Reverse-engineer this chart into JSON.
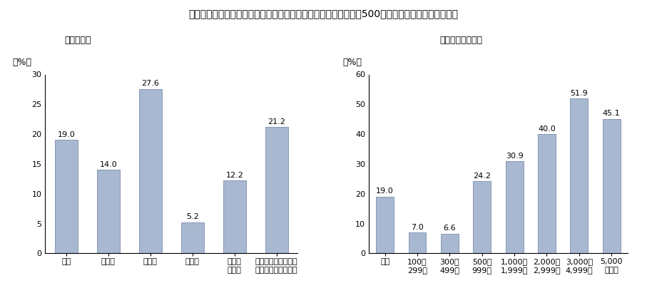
{
  "title": "運輸業、金融・保険業、卸売・小売業、建設業の導入率が低く、500人未満の企業の導入率が低い",
  "left_subtitle": "（産業別）",
  "right_subtitle": "（従業員規模別）",
  "left_ylabel": "（%）",
  "right_ylabel": "（%）",
  "left_categories": [
    "全体",
    "建設業",
    "製造業",
    "運輸業",
    "卸売・\n小売業",
    "金融・サービス業・\n保険業その他（計）"
  ],
  "left_values": [
    19.0,
    14.0,
    27.6,
    5.2,
    12.2,
    21.2
  ],
  "left_ylim": [
    0,
    30
  ],
  "left_yticks": [
    0,
    5,
    10,
    15,
    20,
    25,
    30
  ],
  "right_categories": [
    "全体",
    "100～\n299人",
    "300～\n499人",
    "500～\n999人",
    "1,000～\n1,999人",
    "2,000～\n2,999人",
    "3,000～\n4,999人",
    "5,000\n人以上"
  ],
  "right_values": [
    19.0,
    7.0,
    6.6,
    24.2,
    30.9,
    40.0,
    51.9,
    45.1
  ],
  "right_ylim": [
    0,
    60
  ],
  "right_yticks": [
    0,
    10,
    20,
    30,
    40,
    50,
    60
  ],
  "bar_color": "#a8b8d0",
  "bar_edge_color": "#8898b8",
  "background_color": "#ffffff",
  "title_fontsize": 10,
  "subtitle_fontsize": 9,
  "label_fontsize": 9,
  "tick_fontsize": 8,
  "value_fontsize": 8
}
